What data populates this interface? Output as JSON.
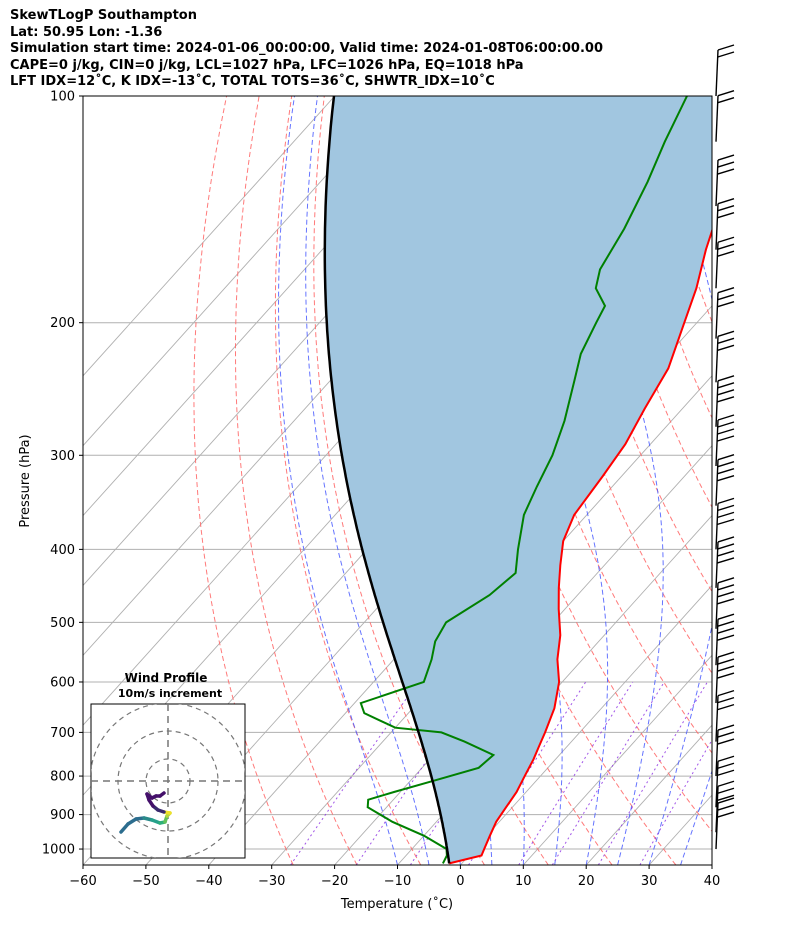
{
  "header": {
    "line1": "SkewTLogP Southampton",
    "line2": "Lat: 50.95   Lon: -1.36",
    "line3": "Simulation start time: 2024-01-06_00:00:00, Valid time: 2024-01-08T06:00:00.00",
    "line4": "CAPE=0 j/kg, CIN=0 j/kg, LCL=1027 hPa, LFC=1026 hPa, EQ=1018 hPa",
    "line5": "LFT IDX=12˚C, K IDX=-13˚C, TOTAL TOTS=36˚C, SHWTR_IDX=10˚C"
  },
  "colors": {
    "temperature": "#ff0000",
    "dewpoint": "#008000",
    "parcel": "#000000",
    "cape_fill": "#a1c6e0",
    "dry_adiabat": "#ff6b6b",
    "moist_adiabat": "#4a5cff",
    "mixing_ratio": "#8a2be2",
    "isotherm": "#b0b0b0",
    "barb": "#000000"
  },
  "hodograph": {
    "title": "Wind Profile",
    "subtitle": "10m/s increment"
  },
  "chart_data": {
    "type": "line",
    "xlabel": "Temperature (˚C)",
    "ylabel": "Pressure (hPa)",
    "xlim": [
      -60,
      40
    ],
    "ylim": [
      1050,
      100
    ],
    "y_scale": "log",
    "x_ticks": [
      "−60",
      "−50",
      "−40",
      "−30",
      "−20",
      "−10",
      "0",
      "10",
      "20",
      "30",
      "40"
    ],
    "y_ticks": [
      "100",
      "200",
      "300",
      "400",
      "500",
      "600",
      "700",
      "800",
      "900",
      "1000"
    ],
    "x_tick_values": [
      -60,
      -50,
      -40,
      -30,
      -20,
      -10,
      0,
      10,
      20,
      30,
      40
    ],
    "y_tick_values": [
      100,
      200,
      300,
      400,
      500,
      600,
      700,
      800,
      900,
      1000
    ],
    "grid": true,
    "series": [
      {
        "key": "temperature",
        "points": [
          [
            1045,
            -2.0
          ],
          [
            1020,
            2.0
          ],
          [
            1000,
            1.5
          ],
          [
            960,
            0.5
          ],
          [
            920,
            -0.5
          ],
          [
            880,
            -1.0
          ],
          [
            840,
            -1.5
          ],
          [
            800,
            -2.5
          ],
          [
            760,
            -3.5
          ],
          [
            730,
            -4.5
          ],
          [
            700,
            -5.5
          ],
          [
            650,
            -7.5
          ],
          [
            600,
            -10.5
          ],
          [
            560,
            -14
          ],
          [
            520,
            -17
          ],
          [
            480,
            -21
          ],
          [
            450,
            -24
          ],
          [
            420,
            -27
          ],
          [
            390,
            -30
          ],
          [
            360,
            -32
          ],
          [
            320,
            -33
          ],
          [
            290,
            -34
          ],
          [
            260,
            -36
          ],
          [
            230,
            -38
          ],
          [
            200,
            -42
          ],
          [
            180,
            -45
          ],
          [
            160,
            -49
          ],
          [
            140,
            -53
          ],
          [
            120,
            -57
          ],
          [
            110,
            -58
          ],
          [
            100,
            -61
          ]
        ]
      },
      {
        "key": "dewpoint",
        "points": [
          [
            1045,
            -3.0
          ],
          [
            1020,
            -3.5
          ],
          [
            1000,
            -4.5
          ],
          [
            960,
            -10
          ],
          [
            920,
            -17
          ],
          [
            880,
            -23
          ],
          [
            860,
            -24
          ],
          [
            840,
            -21
          ],
          [
            810,
            -16
          ],
          [
            780,
            -11
          ],
          [
            750,
            -10.5
          ],
          [
            720,
            -17
          ],
          [
            700,
            -22
          ],
          [
            690,
            -30
          ],
          [
            660,
            -37
          ],
          [
            640,
            -39
          ],
          [
            600,
            -32
          ],
          [
            560,
            -34
          ],
          [
            530,
            -36
          ],
          [
            500,
            -37
          ],
          [
            460,
            -34
          ],
          [
            430,
            -33
          ],
          [
            400,
            -36
          ],
          [
            360,
            -40
          ],
          [
            330,
            -42
          ],
          [
            300,
            -44
          ],
          [
            270,
            -47
          ],
          [
            240,
            -51
          ],
          [
            220,
            -54
          ],
          [
            200,
            -56
          ],
          [
            190,
            -57
          ],
          [
            180,
            -61
          ],
          [
            170,
            -63
          ],
          [
            150,
            -65
          ],
          [
            130,
            -68
          ],
          [
            115,
            -71
          ],
          [
            100,
            -74
          ]
        ]
      }
    ],
    "parcel_profile": true,
    "legend": "none"
  }
}
